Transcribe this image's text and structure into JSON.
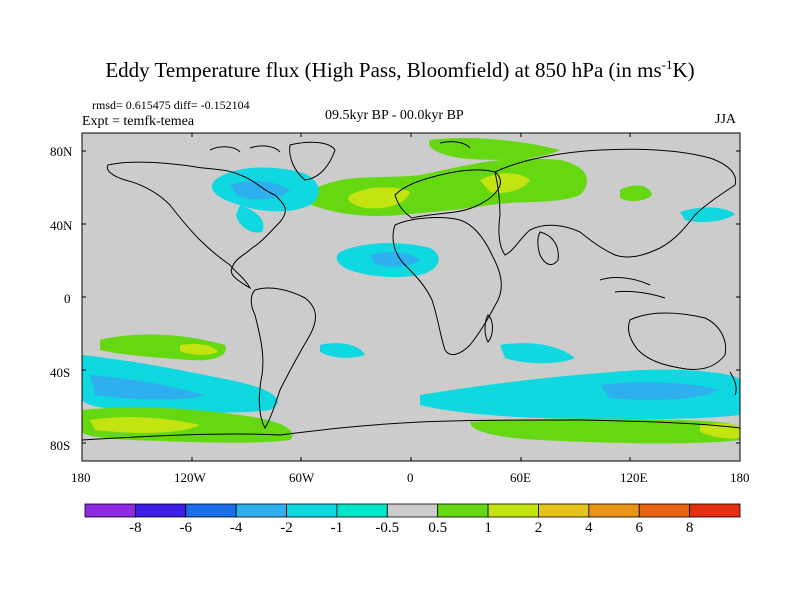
{
  "title": "Eddy Temperature flux (High Pass, Bloomfield) at 850 hPa (in ms",
  "title_sup": "-1",
  "title_end": "K)",
  "stats": "rmsd= 0.615475 diff= -0.152104",
  "expt": "Expt = temfk-temea",
  "period": "09.5kyr BP - 00.0kyr BP",
  "season": "JJA",
  "lat_labels": [
    "80N",
    "40N",
    "0",
    "40S",
    "80S"
  ],
  "lon_labels": [
    "180",
    "120W",
    "60W",
    "0",
    "60E",
    "120E",
    "180"
  ],
  "colorbar": {
    "levels": [
      "-8",
      "-6",
      "-4",
      "-2",
      "-1",
      "-0.5",
      "0.5",
      "1",
      "2",
      "4",
      "6",
      "8"
    ],
    "colors": [
      "#8e2be2",
      "#3d1ee6",
      "#1a6ee8",
      "#2eb0ee",
      "#10d8e0",
      "#00e6c8",
      "#cccccc",
      "#66d811",
      "#c4e412",
      "#e6c41a",
      "#ea9416",
      "#e86410",
      "#e23010"
    ]
  },
  "colors": {
    "land_bg": "#cccccc",
    "coast": "#000000"
  }
}
